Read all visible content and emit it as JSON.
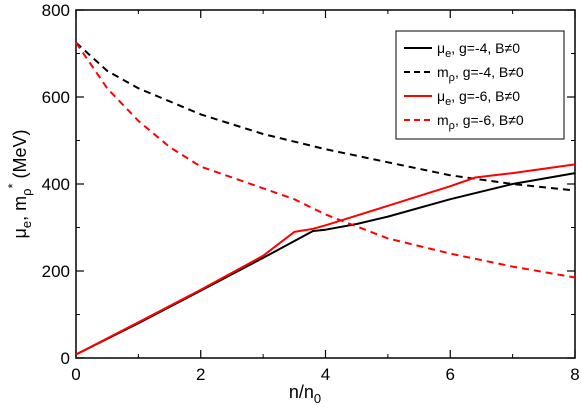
{
  "chart_data": {
    "type": "line",
    "xlabel": "n/n0",
    "ylabel": "μe, mρ* (MeV)",
    "xlim": [
      0,
      8
    ],
    "ylim": [
      0,
      800
    ],
    "x_ticks": [
      "0",
      "2",
      "4",
      "6",
      "8"
    ],
    "y_ticks": [
      "0",
      "200",
      "400",
      "600",
      "800"
    ],
    "legend_position": "top-right",
    "grid": false,
    "series": [
      {
        "name": "μe, g=-4, B≠0",
        "legend_base": "μ",
        "legend_sub": "e",
        "legend_rest": ", g=-4, B≠0",
        "color": "#000000",
        "dash": "solid",
        "x": [
          0.0,
          1.0,
          2.0,
          3.0,
          3.8,
          4.0,
          4.5,
          5.0,
          6.0,
          7.0,
          8.0
        ],
        "y": [
          8,
          80,
          155,
          230,
          292,
          295,
          308,
          325,
          365,
          400,
          425
        ]
      },
      {
        "name": "mρ, g=-4, B≠0",
        "legend_base": "m",
        "legend_sub": "ρ",
        "legend_rest": ", g=-4, B≠0",
        "color": "#000000",
        "dash": "dashed",
        "x": [
          0.0,
          0.5,
          1.0,
          2.0,
          3.0,
          4.0,
          5.0,
          6.0,
          7.0,
          8.0
        ],
        "y": [
          725,
          660,
          620,
          560,
          515,
          480,
          450,
          420,
          400,
          385
        ]
      },
      {
        "name": "μe, g=-6, B≠0",
        "legend_base": "μ",
        "legend_sub": "e",
        "legend_rest": ", g=-6, B≠0",
        "color": "#ff0000",
        "dash": "solid",
        "x": [
          0.0,
          1.0,
          2.0,
          3.0,
          3.5,
          3.8,
          4.0,
          5.0,
          6.0,
          6.4,
          7.0,
          8.0
        ],
        "y": [
          8,
          82,
          157,
          235,
          290,
          297,
          305,
          350,
          395,
          415,
          425,
          445
        ]
      },
      {
        "name": "mρ, g=-6, B≠0",
        "legend_base": "m",
        "legend_sub": "ρ",
        "legend_rest": ", g=-6, B≠0",
        "color": "#ff0000",
        "dash": "dashed",
        "x": [
          0.0,
          0.5,
          1.0,
          1.5,
          2.0,
          3.0,
          3.5,
          4.0,
          5.0,
          6.0,
          7.0,
          8.0
        ],
        "y": [
          725,
          620,
          545,
          485,
          440,
          390,
          365,
          330,
          275,
          240,
          210,
          185
        ]
      }
    ]
  }
}
